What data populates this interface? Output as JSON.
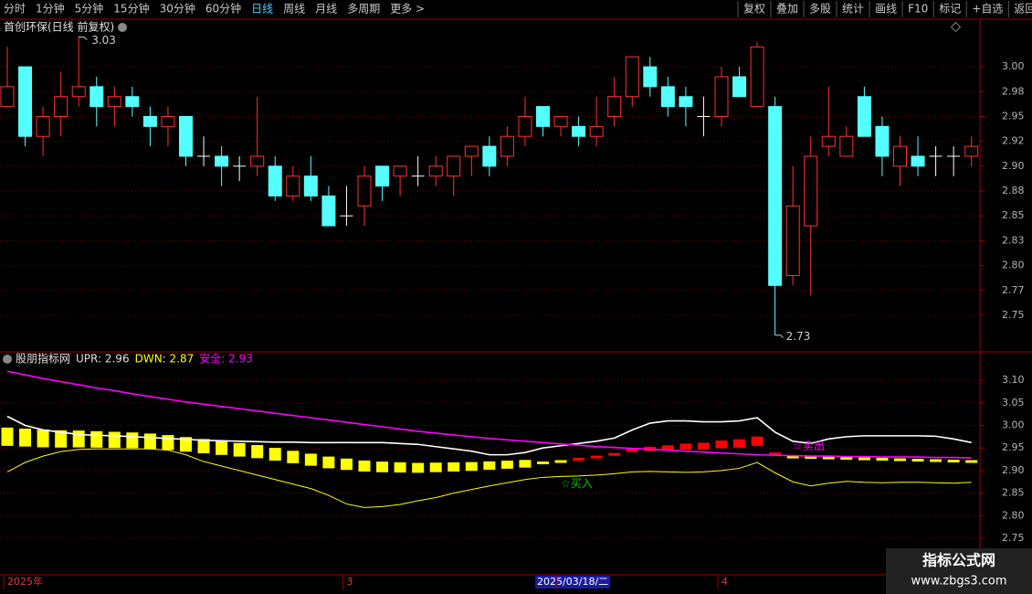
{
  "toolbar": {
    "periods": [
      {
        "label": "分时"
      },
      {
        "label": "1分钟"
      },
      {
        "label": "5分钟"
      },
      {
        "label": "15分钟"
      },
      {
        "label": "30分钟"
      },
      {
        "label": "60分钟"
      },
      {
        "label": "日线",
        "active": true
      },
      {
        "label": "周线"
      },
      {
        "label": "月线"
      },
      {
        "label": "多周期"
      },
      {
        "label": "更多 >"
      }
    ],
    "tools": [
      "复权",
      "叠加",
      "多股",
      "统计",
      "画线",
      "F10",
      "标记",
      "+自选",
      "返回"
    ]
  },
  "chart_data": [
    {
      "type": "candlestick",
      "title": "首创环保(日线 前复权)",
      "up_color": "#ff3232",
      "down_color": "#54ffff",
      "doji_color": "#ffffff",
      "open": [
        2.96,
        3.0,
        2.93,
        2.95,
        2.97,
        2.98,
        2.96,
        2.97,
        2.95,
        2.94,
        2.95,
        2.91,
        2.91,
        2.9,
        2.9,
        2.9,
        2.87,
        2.89,
        2.87,
        2.85,
        2.86,
        2.9,
        2.89,
        2.89,
        2.89,
        2.89,
        2.91,
        2.92,
        2.91,
        2.93,
        2.96,
        2.94,
        2.94,
        2.93,
        2.95,
        2.97,
        3.0,
        2.98,
        2.97,
        2.95,
        2.95,
        2.99,
        2.96,
        2.96,
        2.79,
        2.84,
        2.92,
        2.91,
        2.97,
        2.94,
        2.9,
        2.91,
        2.91,
        2.91,
        2.91
      ],
      "close": [
        2.98,
        2.93,
        2.95,
        2.97,
        2.98,
        2.96,
        2.97,
        2.96,
        2.94,
        2.95,
        2.91,
        2.91,
        2.9,
        2.9,
        2.91,
        2.87,
        2.89,
        2.87,
        2.84,
        2.85,
        2.89,
        2.88,
        2.9,
        2.89,
        2.9,
        2.91,
        2.92,
        2.9,
        2.93,
        2.95,
        2.94,
        2.95,
        2.93,
        2.94,
        2.97,
        3.01,
        2.98,
        2.96,
        2.96,
        2.95,
        2.99,
        2.97,
        3.02,
        2.78,
        2.86,
        2.91,
        2.93,
        2.93,
        2.93,
        2.91,
        2.92,
        2.9,
        2.91,
        2.91,
        2.92
      ],
      "high": [
        3.02,
        3.0,
        2.96,
        2.995,
        3.03,
        2.99,
        2.98,
        2.98,
        2.96,
        2.96,
        2.95,
        2.93,
        2.92,
        2.91,
        2.97,
        2.91,
        2.9,
        2.91,
        2.88,
        2.88,
        2.9,
        2.9,
        2.9,
        2.91,
        2.91,
        2.91,
        2.92,
        2.93,
        2.94,
        2.97,
        2.96,
        2.95,
        2.95,
        2.97,
        2.99,
        3.01,
        3.01,
        2.99,
        2.98,
        2.97,
        3.0,
        3.0,
        3.025,
        2.97,
        2.9,
        2.93,
        2.98,
        2.94,
        2.98,
        2.95,
        2.93,
        2.93,
        2.92,
        2.92,
        2.93
      ],
      "low": [
        2.96,
        2.92,
        2.91,
        2.93,
        2.96,
        2.94,
        2.94,
        2.95,
        2.92,
        2.92,
        2.9,
        2.9,
        2.88,
        2.885,
        2.89,
        2.865,
        2.865,
        2.865,
        2.84,
        2.84,
        2.84,
        2.865,
        2.87,
        2.88,
        2.88,
        2.87,
        2.89,
        2.89,
        2.9,
        2.92,
        2.93,
        2.93,
        2.92,
        2.92,
        2.94,
        2.96,
        2.97,
        2.95,
        2.94,
        2.93,
        2.94,
        2.97,
        2.96,
        2.73,
        2.78,
        2.77,
        2.91,
        2.91,
        2.93,
        2.89,
        2.88,
        2.89,
        2.89,
        2.89,
        2.9
      ],
      "high_label": "3.03",
      "low_label": "2.73",
      "ylim": [
        2.715,
        3.047
      ],
      "yticks": [
        {
          "value": 3.0,
          "label": "3.00"
        },
        {
          "value": 2.975,
          "label": "2.98"
        },
        {
          "value": 2.95,
          "label": "2.95"
        },
        {
          "value": 2.925,
          "label": "2.92"
        },
        {
          "value": 2.9,
          "label": "2.90"
        },
        {
          "value": 2.875,
          "label": "2.88"
        },
        {
          "value": 2.85,
          "label": "2.85"
        },
        {
          "value": 2.825,
          "label": "2.83"
        },
        {
          "value": 2.8,
          "label": "2.80"
        },
        {
          "value": 2.775,
          "label": "2.77"
        },
        {
          "value": 2.75,
          "label": "2.75"
        }
      ],
      "grid": true
    },
    {
      "type": "line",
      "title": "股朋指标网",
      "categories": [
        "2025年",
        null,
        null,
        null,
        null,
        null,
        null,
        null,
        null,
        null,
        null,
        null,
        null,
        null,
        null,
        null,
        null,
        null,
        null,
        "3",
        null,
        null,
        null,
        null,
        null,
        null,
        null,
        null,
        null,
        null,
        null,
        "2025/03/18/二",
        null,
        null,
        null,
        null,
        null,
        null,
        null,
        null,
        "4",
        null,
        null,
        null,
        null,
        null,
        null,
        null,
        null,
        null,
        null,
        null,
        null,
        null,
        null
      ],
      "cursor": 31,
      "series": [
        {
          "name": "UPR: 2.96",
          "color": "#ffffff",
          "values": [
            3.02,
            3.0,
            2.99,
            2.985,
            2.98,
            2.978,
            2.977,
            2.975,
            2.973,
            2.971,
            2.969,
            2.967,
            2.966,
            2.965,
            2.964,
            2.963,
            2.963,
            2.962,
            2.962,
            2.962,
            2.962,
            2.962,
            2.96,
            2.958,
            2.953,
            2.948,
            2.943,
            2.935,
            2.935,
            2.94,
            2.95,
            2.955,
            2.96,
            2.965,
            2.972,
            2.99,
            3.005,
            3.01,
            3.01,
            3.008,
            3.008,
            3.01,
            3.017,
            2.985,
            2.965,
            2.96,
            2.97,
            2.975,
            2.977,
            2.977,
            2.977,
            2.977,
            2.976,
            2.97,
            2.962
          ]
        },
        {
          "name": "DWN: 2.87",
          "color": "#ffff00",
          "values": [
            2.897,
            2.918,
            2.932,
            2.942,
            2.947,
            2.948,
            2.948,
            2.948,
            2.948,
            2.945,
            2.935,
            2.92,
            2.91,
            2.9,
            2.89,
            2.88,
            2.87,
            2.86,
            2.845,
            2.826,
            2.818,
            2.82,
            2.825,
            2.833,
            2.84,
            2.85,
            2.858,
            2.866,
            2.873,
            2.88,
            2.885,
            2.887,
            2.888,
            2.89,
            2.893,
            2.897,
            2.898,
            2.897,
            2.896,
            2.897,
            2.9,
            2.905,
            2.918,
            2.895,
            2.875,
            2.866,
            2.872,
            2.876,
            2.874,
            2.873,
            2.874,
            2.874,
            2.873,
            2.872,
            2.874
          ]
        },
        {
          "name": "安全: 2.93",
          "color": "#ff00ff",
          "values": [
            3.12,
            3.112,
            3.104,
            3.097,
            3.09,
            3.083,
            3.077,
            3.07,
            3.064,
            3.058,
            3.052,
            3.047,
            3.042,
            3.037,
            3.032,
            3.027,
            3.022,
            3.017,
            3.012,
            3.007,
            3.002,
            2.997,
            2.992,
            2.987,
            2.983,
            2.979,
            2.975,
            2.971,
            2.968,
            2.965,
            2.962,
            2.959,
            2.956,
            2.953,
            2.951,
            2.949,
            2.947,
            2.945,
            2.943,
            2.941,
            2.939,
            2.937,
            2.935,
            2.934,
            2.933,
            2.932,
            2.932,
            2.931,
            2.931,
            2.93,
            2.93,
            2.93,
            2.929,
            2.929,
            2.928
          ]
        }
      ],
      "blocks": [
        {
          "color": "#ffff00",
          "values": [
            2.975,
            2.973,
            2.971,
            2.97,
            2.97,
            2.969,
            2.968,
            2.967,
            2.965,
            2.962,
            2.958,
            2.954,
            2.95,
            2.946,
            2.942,
            2.936,
            2.93,
            2.924,
            2.918,
            2.914,
            2.91,
            2.908,
            2.907,
            2.906,
            2.907,
            2.908,
            2.909,
            2.911,
            2.913,
            2.915,
            2.917,
            2.92,
            null,
            null,
            null,
            null,
            null,
            null,
            null,
            null,
            null,
            null,
            null,
            null,
            2.93,
            2.929,
            2.928,
            2.927,
            2.926,
            2.925,
            2.924,
            2.923,
            2.922,
            2.921,
            2.92
          ]
        },
        {
          "color": "#ff0000",
          "values": [
            null,
            null,
            null,
            null,
            null,
            null,
            null,
            null,
            null,
            null,
            null,
            null,
            null,
            null,
            null,
            null,
            null,
            null,
            null,
            null,
            null,
            null,
            null,
            null,
            null,
            null,
            null,
            null,
            null,
            null,
            null,
            null,
            2.925,
            2.93,
            2.936,
            2.945,
            2.948,
            2.95,
            2.953,
            2.954,
            2.958,
            2.96,
            2.965,
            2.937,
            null,
            null,
            null,
            null,
            null,
            null,
            null,
            null,
            null,
            null,
            null
          ]
        }
      ],
      "signals": [
        {
          "text": "☆买入",
          "at": 31,
          "value": 2.87,
          "color": "#00c800"
        },
        {
          "text": "☆卖出",
          "at": 44,
          "value": 2.953,
          "color": "#ff00ff"
        }
      ],
      "ylim": [
        2.671,
        3.159
      ],
      "yticks": [
        {
          "value": 3.1,
          "label": "3.10"
        },
        {
          "value": 3.05,
          "label": "3.05"
        },
        {
          "value": 3.0,
          "label": "3.00"
        },
        {
          "value": 2.95,
          "label": "2.95"
        },
        {
          "value": 2.9,
          "label": "2.90"
        },
        {
          "value": 2.85,
          "label": "2.85"
        },
        {
          "value": 2.8,
          "label": "2.80"
        },
        {
          "value": 2.75,
          "label": "2.75"
        }
      ],
      "grid": true
    }
  ],
  "watermark": {
    "title": "指标公式网",
    "url": "www.zbgs3.com"
  }
}
